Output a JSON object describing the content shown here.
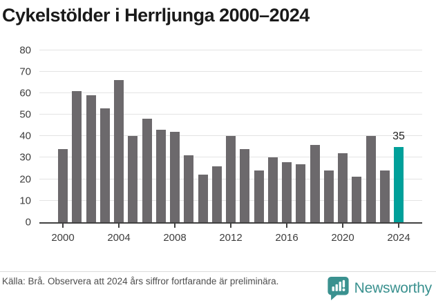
{
  "title": "Cykelstölder i Herrljunga 2000–2024",
  "chart_data": {
    "type": "bar",
    "title": "Cykelstölder i Herrljunga 2000–2024",
    "categories": [
      2000,
      2001,
      2002,
      2003,
      2004,
      2005,
      2006,
      2007,
      2008,
      2009,
      2010,
      2011,
      2012,
      2013,
      2014,
      2015,
      2016,
      2017,
      2018,
      2019,
      2020,
      2021,
      2022,
      2023,
      2024
    ],
    "values": [
      34,
      61,
      59,
      53,
      66,
      40,
      48,
      43,
      42,
      31,
      22,
      26,
      40,
      34,
      24,
      30,
      28,
      27,
      36,
      24,
      32,
      21,
      40,
      24,
      35
    ],
    "xlabel": "",
    "ylabel": "",
    "ylim": [
      0,
      80
    ],
    "yticks": [
      0,
      10,
      20,
      30,
      40,
      50,
      60,
      70,
      80
    ],
    "xticks": [
      2000,
      2004,
      2008,
      2012,
      2016,
      2020,
      2024
    ],
    "grid": "horizontal",
    "legend": "none",
    "bar_color": "#6c696c",
    "highlight": {
      "category": 2024,
      "value": 35,
      "label": "35",
      "color": "#00a09a"
    }
  },
  "footer": {
    "source_text": "Källa: Brå. Observera att 2024 års siffror fortfarande är preliminära."
  },
  "branding": {
    "name": "Newsworthy",
    "icon": "newsworthy-speech-bubble-chart-icon",
    "color": "#3a918f"
  },
  "colors": {
    "axis_line": "#404040",
    "gridline": "#e3e3e3",
    "tick_text": "#3d3d3d",
    "title_text": "#1a1a1a",
    "footer_text": "#4d4d4d"
  }
}
